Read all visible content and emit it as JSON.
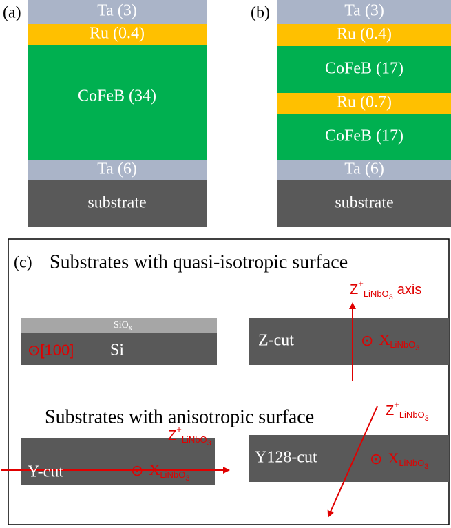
{
  "panel_a": {
    "label": "(a)",
    "layers": [
      "Ta (3)",
      "Ru (0.4)",
      "CoFeB (34)",
      "Ta (6)",
      "substrate"
    ]
  },
  "panel_b": {
    "label": "(b)",
    "layers": [
      "Ta (3)",
      "Ru (0.4)",
      "CoFeB (17)",
      "Ru (0.7)",
      "CoFeB (17)",
      "Ta (6)",
      "substrate"
    ]
  },
  "panel_c": {
    "label": "(c)",
    "heading_isotropic": "Substrates with quasi-isotropic surface",
    "heading_anisotropic": "Substrates with anisotropic surface",
    "si": {
      "oxide": "SiO",
      "oxide_sub": "x",
      "direction": "⊙[100]",
      "label": "Si"
    },
    "z_cut": {
      "label": "Z-cut",
      "axis": "Z",
      "axis_sup": "+",
      "axis_sub": "LiNbO",
      "axis_subsub": "3",
      "axis_suffix": "axis",
      "x_symbol": "⊙",
      "x": "X",
      "x_sub": "LiNbO",
      "x_subsub": "3"
    },
    "y_cut": {
      "label": "Y-cut",
      "axis": "Z",
      "axis_sup": "+",
      "axis_sub": "LiNbO",
      "axis_subsub": "3",
      "x_symbol": "⊙",
      "x": "X",
      "x_sub": "LiNbO",
      "x_subsub": "3"
    },
    "y128_cut": {
      "label": "Y128-cut",
      "axis": "Z",
      "axis_sup": "+",
      "axis_sub": "LiNbO",
      "axis_subsub": "3",
      "x_symbol": "⊙",
      "x": "X",
      "x_sub": "LiNbO",
      "x_subsub": "3"
    }
  }
}
